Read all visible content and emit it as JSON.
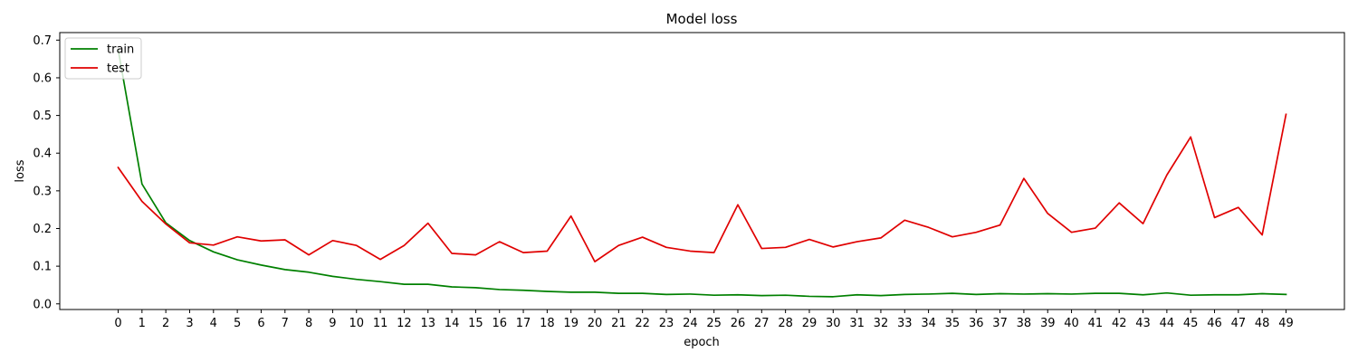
{
  "chart_data": {
    "type": "line",
    "title": "Model loss",
    "xlabel": "epoch",
    "ylabel": "loss",
    "xlim": [
      -2.45,
      51.45
    ],
    "ylim": [
      -0.015,
      0.72
    ],
    "x": [
      0,
      1,
      2,
      3,
      4,
      5,
      6,
      7,
      8,
      9,
      10,
      11,
      12,
      13,
      14,
      15,
      16,
      17,
      18,
      19,
      20,
      21,
      22,
      23,
      24,
      25,
      26,
      27,
      28,
      29,
      30,
      31,
      32,
      33,
      34,
      35,
      36,
      37,
      38,
      39,
      40,
      41,
      42,
      43,
      44,
      45,
      46,
      47,
      48,
      49
    ],
    "x_ticks": [
      "0",
      "1",
      "2",
      "3",
      "4",
      "5",
      "6",
      "7",
      "8",
      "9",
      "10",
      "11",
      "12",
      "13",
      "14",
      "15",
      "16",
      "17",
      "18",
      "19",
      "20",
      "21",
      "22",
      "23",
      "24",
      "25",
      "26",
      "27",
      "28",
      "29",
      "30",
      "31",
      "32",
      "33",
      "34",
      "35",
      "36",
      "37",
      "38",
      "39",
      "40",
      "41",
      "42",
      "43",
      "44",
      "45",
      "46",
      "47",
      "48",
      "49"
    ],
    "y_ticks": [
      0.0,
      0.1,
      0.2,
      0.3,
      0.4,
      0.5,
      0.6,
      0.7
    ],
    "y_tick_labels": [
      "0.0",
      "0.1",
      "0.2",
      "0.3",
      "0.4",
      "0.5",
      "0.6",
      "0.7"
    ],
    "grid": false,
    "legend_position": "top-left",
    "series": [
      {
        "name": "train",
        "color": "#008000",
        "values": [
          0.675,
          0.318,
          0.215,
          0.168,
          0.138,
          0.117,
          0.103,
          0.091,
          0.084,
          0.073,
          0.065,
          0.059,
          0.052,
          0.052,
          0.045,
          0.043,
          0.038,
          0.036,
          0.033,
          0.031,
          0.031,
          0.028,
          0.028,
          0.025,
          0.026,
          0.023,
          0.024,
          0.022,
          0.023,
          0.02,
          0.019,
          0.024,
          0.022,
          0.025,
          0.026,
          0.028,
          0.025,
          0.027,
          0.026,
          0.027,
          0.026,
          0.028,
          0.028,
          0.024,
          0.029,
          0.023,
          0.024,
          0.024,
          0.027,
          0.025
        ]
      },
      {
        "name": "test",
        "color": "#e00000",
        "values": [
          0.362,
          0.272,
          0.212,
          0.162,
          0.156,
          0.178,
          0.167,
          0.17,
          0.13,
          0.168,
          0.155,
          0.118,
          0.155,
          0.214,
          0.134,
          0.13,
          0.165,
          0.136,
          0.14,
          0.233,
          0.112,
          0.155,
          0.177,
          0.15,
          0.14,
          0.136,
          0.263,
          0.147,
          0.15,
          0.171,
          0.151,
          0.165,
          0.175,
          0.222,
          0.203,
          0.178,
          0.19,
          0.209,
          0.333,
          0.24,
          0.19,
          0.201,
          0.268,
          0.213,
          0.342,
          0.443,
          0.229,
          0.256,
          0.183,
          0.503
        ]
      }
    ]
  }
}
